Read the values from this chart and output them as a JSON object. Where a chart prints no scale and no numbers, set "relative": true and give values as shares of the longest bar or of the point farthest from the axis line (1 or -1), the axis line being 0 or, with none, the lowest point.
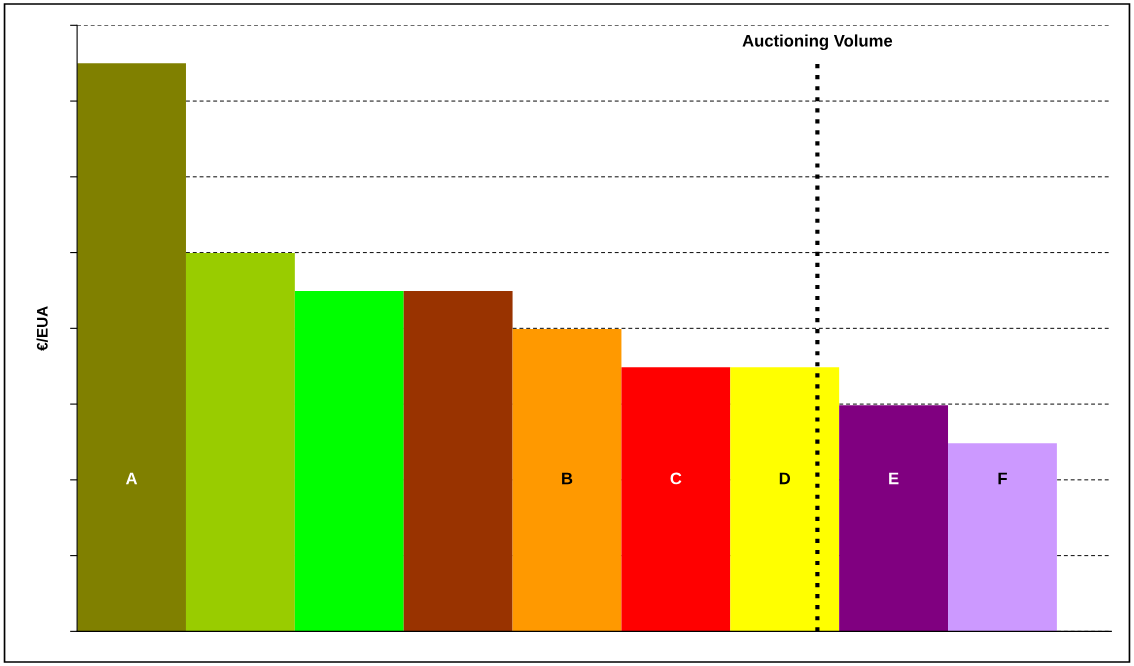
{
  "chart_data": {
    "type": "bar",
    "relative": true,
    "ylabel": "€/EUA",
    "categories": [
      "A",
      null,
      null,
      null,
      "B",
      "C",
      "D",
      "E",
      "F"
    ],
    "values": [
      1,
      0.666,
      0.599,
      0.599,
      0.532,
      0.465,
      0.465,
      0.398,
      0.331
    ],
    "colors": [
      "#808000",
      "#99cc00",
      "#00ff00",
      "#993300",
      "#ff9900",
      "#ff0000",
      "#ffff00",
      "#800080",
      "#cc99ff"
    ],
    "ref_lines": [
      {
        "axis": "x",
        "value": "D",
        "label": "Auctioning Volume",
        "color": "#000000",
        "line_style": "dotted"
      }
    ],
    "grid": "y",
    "tick_labels": false
  }
}
